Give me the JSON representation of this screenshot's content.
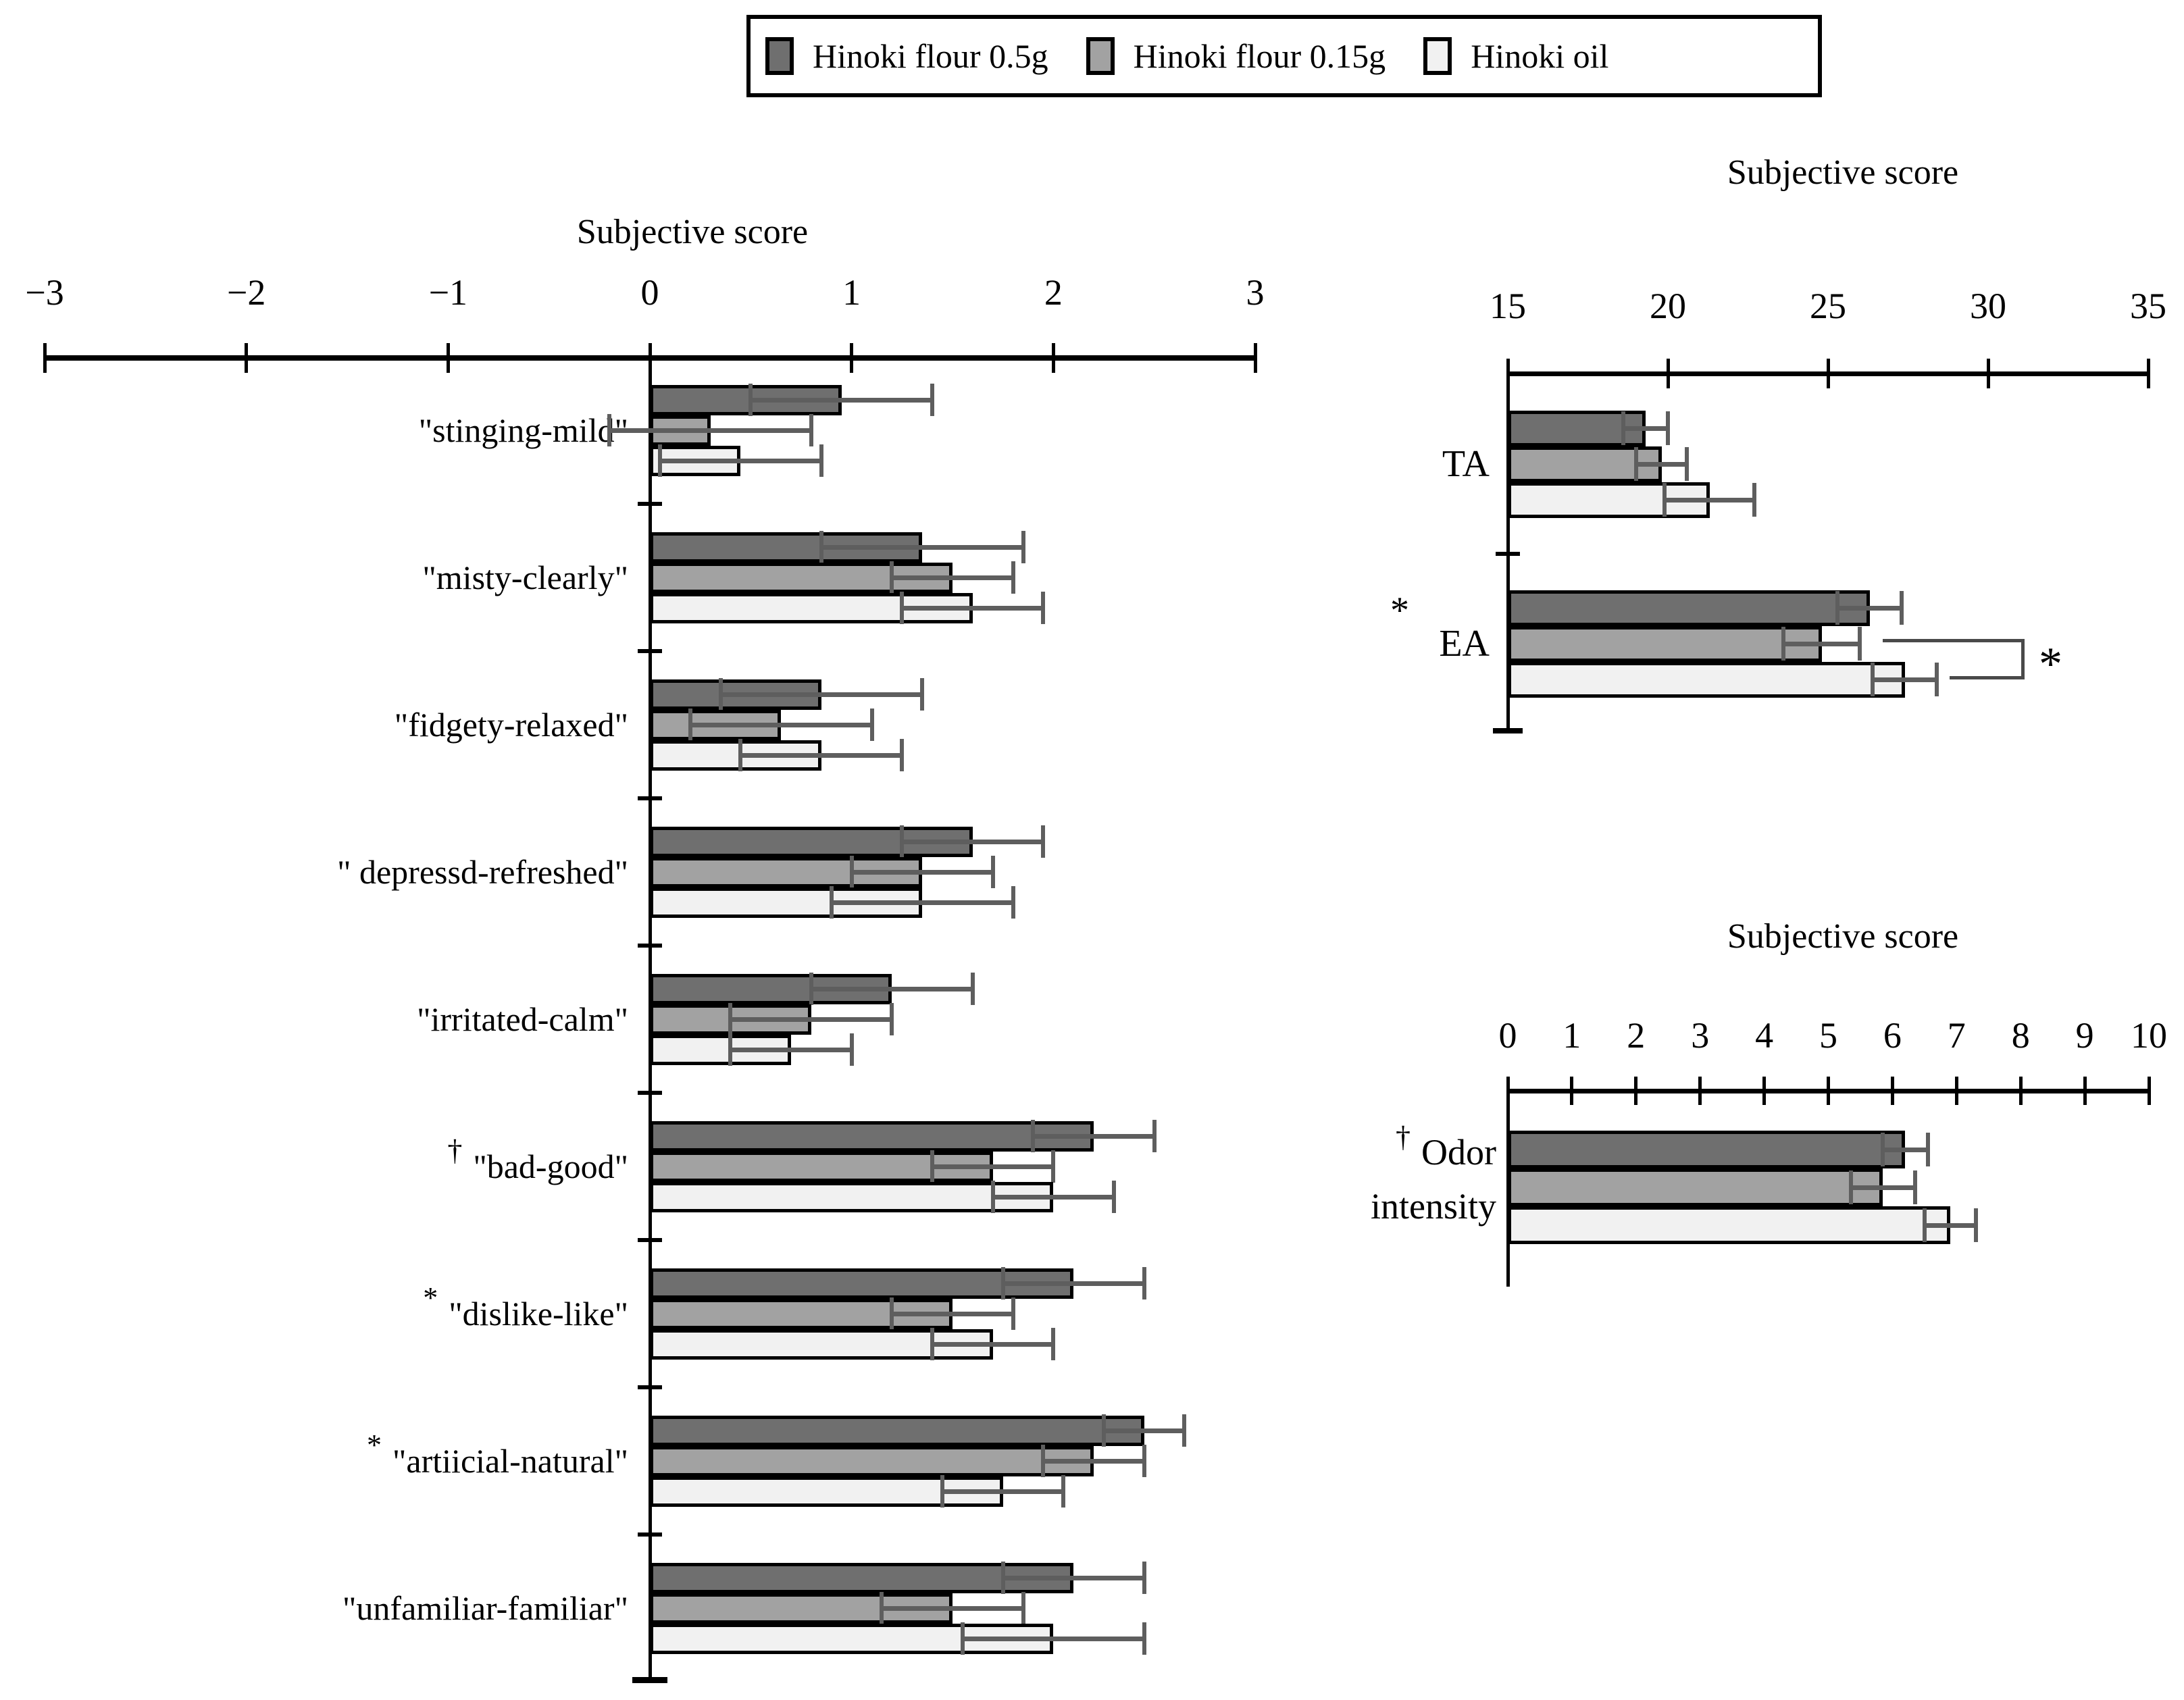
{
  "legend": {
    "items": [
      {
        "label": "Hinoki flour 0.5g",
        "swatch": "dark"
      },
      {
        "label": "Hinoki flour 0.15g",
        "swatch": "medium"
      },
      {
        "label": "Hinoki oil",
        "swatch": "light"
      }
    ]
  },
  "colors": {
    "dark": "#6f6f6f",
    "medium": "#a2a2a2",
    "light": "#f1f1f1",
    "error_bar": "#5e5e5e",
    "axis": "#000000",
    "bracket": "#4a4a4a"
  },
  "chart_data": [
    {
      "id": "left",
      "type": "bar",
      "orientation": "horizontal",
      "title": "Subjective score",
      "series": [
        "Hinoki flour 0.5g",
        "Hinoki flour 0.15g",
        "Hinoki oil"
      ],
      "axis": {
        "min": -3,
        "max": 3,
        "ticks": [
          -3,
          -2,
          -1,
          0,
          1,
          2,
          3
        ],
        "tick_labels": [
          "−3",
          "−2",
          "−1",
          "0",
          "1",
          "2",
          "3"
        ]
      },
      "categories": [
        {
          "label": "\"stinging-mild\"",
          "marker": "",
          "values": [
            0.95,
            0.3,
            0.45
          ],
          "errors": [
            0.45,
            0.5,
            0.4
          ]
        },
        {
          "label": "\"misty-clearly\"",
          "marker": "",
          "values": [
            1.35,
            1.5,
            1.6
          ],
          "errors": [
            0.5,
            0.3,
            0.35
          ]
        },
        {
          "label": "\"fidgety-relaxed\"",
          "marker": "",
          "values": [
            0.85,
            0.65,
            0.85
          ],
          "errors": [
            0.5,
            0.45,
            0.4
          ]
        },
        {
          "label": "\" depressd-refreshed\"",
          "marker": "",
          "values": [
            1.6,
            1.35,
            1.35
          ],
          "errors": [
            0.35,
            0.35,
            0.45
          ]
        },
        {
          "label": "\"irritated-calm\"",
          "marker": "",
          "values": [
            1.2,
            0.8,
            0.7
          ],
          "errors": [
            0.4,
            0.4,
            0.3
          ]
        },
        {
          "label": "\"bad-good\"",
          "marker": "†",
          "values": [
            2.2,
            1.7,
            2.0
          ],
          "errors": [
            0.3,
            0.3,
            0.3
          ]
        },
        {
          "label": "\"dislike-like\"",
          "marker": "*",
          "values": [
            2.1,
            1.5,
            1.7
          ],
          "errors": [
            0.35,
            0.3,
            0.3
          ]
        },
        {
          "label": "\"artiicial-natural\"",
          "marker": "*",
          "values": [
            2.45,
            2.2,
            1.75
          ],
          "errors": [
            0.2,
            0.25,
            0.3
          ]
        },
        {
          "label": "\"unfamiliar-familiar\"",
          "marker": "",
          "values": [
            2.1,
            1.5,
            2.0
          ],
          "errors": [
            0.35,
            0.35,
            0.45
          ]
        }
      ]
    },
    {
      "id": "right-top",
      "type": "bar",
      "orientation": "horizontal",
      "title": "Subjective score",
      "series": [
        "Hinoki flour 0.5g",
        "Hinoki flour 0.15g",
        "Hinoki oil"
      ],
      "axis": {
        "min": 15,
        "max": 35,
        "ticks": [
          15,
          20,
          25,
          30,
          35
        ],
        "tick_labels": [
          "15",
          "20",
          "25",
          "30",
          "35"
        ]
      },
      "categories": [
        {
          "label": "TA",
          "marker": "",
          "values": [
            19.3,
            19.8,
            21.3
          ],
          "errors": [
            0.7,
            0.8,
            1.4
          ]
        },
        {
          "label": "EA",
          "marker": "*",
          "values": [
            26.3,
            24.8,
            27.4
          ],
          "errors": [
            1.0,
            1.2,
            1.0
          ]
        }
      ],
      "significance_bracket": {
        "category": "EA",
        "between": [
          "Hinoki flour 0.15g",
          "Hinoki oil"
        ],
        "label": "*"
      }
    },
    {
      "id": "right-bottom",
      "type": "bar",
      "orientation": "horizontal",
      "title": "Subjective score",
      "series": [
        "Hinoki flour 0.5g",
        "Hinoki flour 0.15g",
        "Hinoki oil"
      ],
      "axis": {
        "min": 0,
        "max": 10,
        "ticks": [
          0,
          1,
          2,
          3,
          4,
          5,
          6,
          7,
          8,
          9,
          10
        ],
        "tick_labels": [
          "0",
          "1",
          "2",
          "3",
          "4",
          "5",
          "6",
          "7",
          "8",
          "9",
          "10"
        ]
      },
      "categories": [
        {
          "label": "Odor intensity",
          "lines": [
            "Odor",
            "intensity"
          ],
          "marker": "†",
          "values": [
            6.2,
            5.85,
            6.9
          ],
          "errors": [
            0.35,
            0.5,
            0.4
          ]
        }
      ]
    }
  ]
}
